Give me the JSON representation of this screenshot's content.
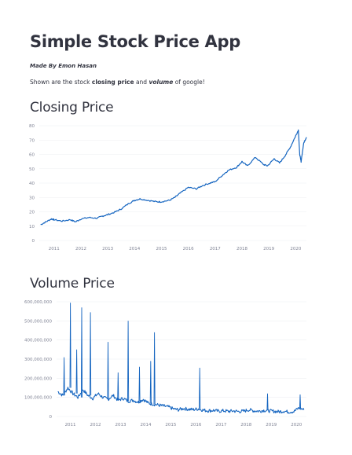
{
  "app": {
    "title": "Simple Stock Price App",
    "byline": "Made By Emon Hasan",
    "intro_prefix": "Shown are the stock ",
    "intro_bold": "closing price",
    "intro_mid": " and ",
    "intro_italic": "volume",
    "intro_suffix": " of google!"
  },
  "sections": {
    "closing": {
      "title": "Closing Price"
    },
    "volume": {
      "title": "Volume Price"
    }
  },
  "colors": {
    "line": "#1565c0",
    "text": "#31333f",
    "tick": "#808495"
  },
  "chart_data": [
    {
      "type": "line",
      "title": "",
      "xlabel": "",
      "ylabel": "",
      "x_ticks": [
        "2011",
        "2012",
        "2013",
        "2014",
        "2015",
        "2016",
        "2017",
        "2018",
        "2019",
        "2020"
      ],
      "y_ticks": [
        "0",
        "10",
        "20",
        "30",
        "40",
        "50",
        "60",
        "70",
        "80"
      ],
      "xlim": [
        2010.45,
        2020.4
      ],
      "ylim": [
        0,
        80
      ],
      "grid": true,
      "series": [
        {
          "x": [
            2010.5,
            2010.7,
            2010.9,
            2011.0,
            2011.3,
            2011.6,
            2011.8,
            2012.0,
            2012.3,
            2012.6,
            2012.8,
            2013.0,
            2013.3,
            2013.5,
            2013.8,
            2014.0,
            2014.2,
            2014.5,
            2014.8,
            2015.0,
            2015.3,
            2015.5,
            2015.7,
            2016.0,
            2016.3,
            2016.5,
            2016.8,
            2017.0,
            2017.3,
            2017.5,
            2017.8,
            2018.0,
            2018.2,
            2018.5,
            2018.8,
            2018.95,
            2019.2,
            2019.4,
            2019.6,
            2019.8,
            2020.0,
            2020.1,
            2020.15,
            2020.2,
            2020.3,
            2020.4
          ],
          "y": [
            11,
            13,
            15,
            14.5,
            13.5,
            14.5,
            13,
            15,
            16,
            15.5,
            17,
            18,
            20,
            22,
            26,
            28,
            29,
            28,
            27,
            27,
            28,
            30,
            33,
            37,
            36,
            38,
            40,
            41,
            46,
            49,
            51,
            55,
            52,
            58,
            53,
            52,
            57,
            54,
            59,
            65,
            73,
            77,
            60,
            55,
            68,
            72
          ]
        }
      ]
    },
    {
      "type": "line",
      "title": "",
      "xlabel": "",
      "ylabel": "",
      "x_ticks": [
        "2011",
        "2012",
        "2013",
        "2014",
        "2015",
        "2016",
        "2017",
        "2018",
        "2019",
        "2020"
      ],
      "y_ticks": [
        "0",
        "100,000,000",
        "200,000,000",
        "300,000,000",
        "400,000,000",
        "500,000,000",
        "600,000,000"
      ],
      "xlim": [
        2010.45,
        2020.4
      ],
      "ylim": [
        0,
        600000000
      ],
      "grid": true,
      "series": [
        {
          "x": [
            2010.5,
            2010.7,
            2010.9,
            2011.1,
            2011.3,
            2011.5,
            2011.7,
            2011.9,
            2012.1,
            2012.3,
            2012.5,
            2012.7,
            2012.9,
            2013.1,
            2013.3,
            2013.5,
            2013.7,
            2013.9,
            2014.1,
            2014.3,
            2014.5,
            2014.7,
            2014.9,
            2015.1,
            2015.3,
            2015.5,
            2015.7,
            2015.9,
            2016.1,
            2016.3,
            2016.5,
            2016.7,
            2016.9,
            2017.1,
            2017.3,
            2017.5,
            2017.7,
            2017.9,
            2018.1,
            2018.3,
            2018.5,
            2018.7,
            2018.9,
            2019.1,
            2019.3,
            2019.5,
            2019.7,
            2019.9,
            2020.1,
            2020.3
          ],
          "y": [
            130000000,
            110000000,
            150000000,
            120000000,
            100000000,
            140000000,
            110000000,
            95000000,
            120000000,
            100000000,
            90000000,
            110000000,
            85000000,
            95000000,
            80000000,
            85000000,
            75000000,
            90000000,
            70000000,
            65000000,
            60000000,
            55000000,
            50000000,
            40000000,
            35000000,
            42000000,
            38000000,
            36000000,
            40000000,
            33000000,
            30000000,
            32000000,
            28000000,
            30000000,
            27000000,
            29000000,
            26000000,
            28000000,
            35000000,
            30000000,
            28000000,
            32000000,
            30000000,
            27000000,
            25000000,
            28000000,
            24000000,
            26000000,
            45000000,
            35000000
          ]
        }
      ],
      "spikes": [
        {
          "x": 2010.75,
          "y": 310000000
        },
        {
          "x": 2011.0,
          "y": 595000000
        },
        {
          "x": 2011.25,
          "y": 350000000
        },
        {
          "x": 2011.45,
          "y": 570000000
        },
        {
          "x": 2011.8,
          "y": 545000000
        },
        {
          "x": 2012.5,
          "y": 390000000
        },
        {
          "x": 2012.9,
          "y": 230000000
        },
        {
          "x": 2013.3,
          "y": 500000000
        },
        {
          "x": 2013.75,
          "y": 260000000
        },
        {
          "x": 2014.2,
          "y": 290000000
        },
        {
          "x": 2014.35,
          "y": 440000000
        },
        {
          "x": 2016.15,
          "y": 255000000
        },
        {
          "x": 2018.85,
          "y": 120000000
        },
        {
          "x": 2020.15,
          "y": 115000000
        }
      ]
    }
  ]
}
